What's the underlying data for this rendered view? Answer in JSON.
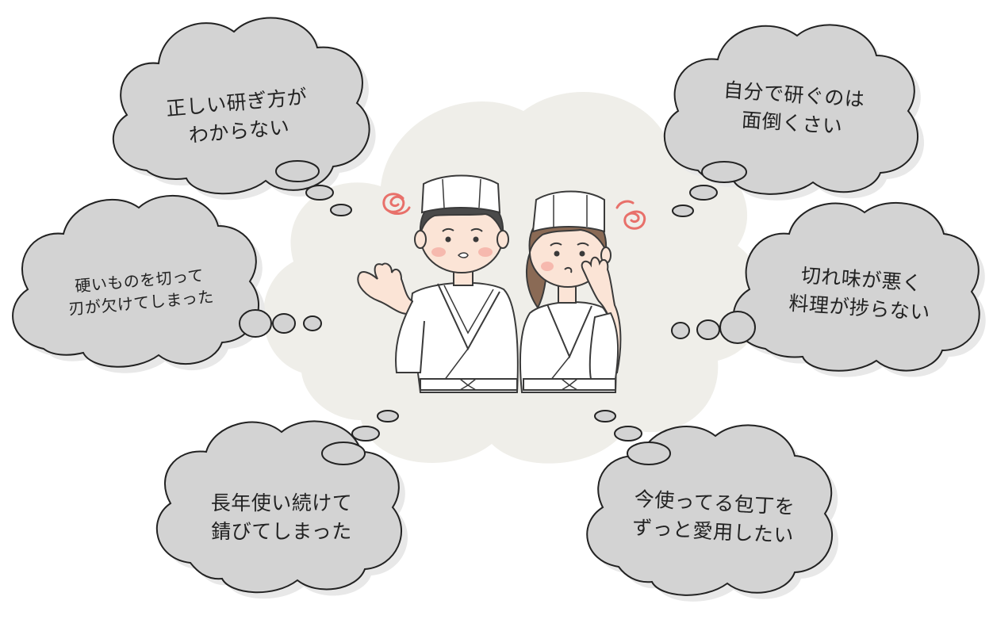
{
  "colors": {
    "bubble_fill": "#d3d3d3",
    "bubble_outline": "#222222",
    "bubble_shadow": "#e8e8e8",
    "background_cloud": "#efeee9",
    "dizzy_mark": "#e8706a",
    "uniform": "#ffffff",
    "uniform_outline": "#3a3a3a",
    "hair_man": "#4a4a4a",
    "hair_woman": "#8a6a55",
    "skin": "#fbe4d6",
    "cheek": "#f6b9ae"
  },
  "bubbles": [
    {
      "id": "top-left",
      "lines": [
        "正しい研ぎ方が",
        "わからない"
      ]
    },
    {
      "id": "top-right",
      "lines": [
        "自分で研ぐのは",
        "面倒くさい"
      ]
    },
    {
      "id": "mid-left",
      "lines": [
        "硬いものを切って",
        "刃が欠けてしまった"
      ]
    },
    {
      "id": "mid-right",
      "lines": [
        "切れ味が悪く",
        "料理が捗らない"
      ]
    },
    {
      "id": "bottom-left",
      "lines": [
        "長年使い続けて",
        "錆びてしまった"
      ]
    },
    {
      "id": "bottom-right",
      "lines": [
        "今使ってる包丁を",
        "ずっと愛用したい"
      ]
    }
  ],
  "illustration": {
    "figures": [
      "chef-man",
      "chef-woman"
    ],
    "icons": [
      "dizzy-swirl-icon",
      "dizzy-swirl-icon"
    ]
  }
}
